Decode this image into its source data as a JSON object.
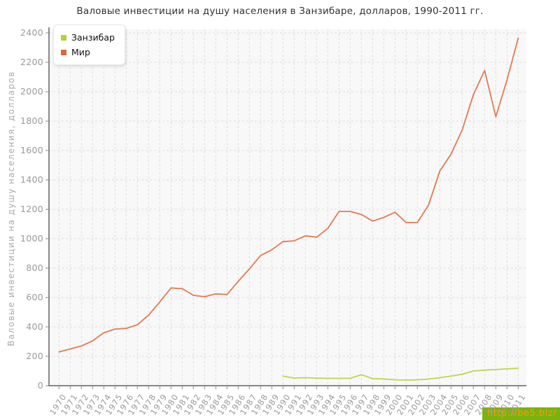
{
  "title": "Валовые инвестиции на душу населения в Занзибаре, долларов, 1990-2011 гг.",
  "y_axis_label": "Валовые инвестиции на душу населения, долларов",
  "watermark_text": "http://be5.biz/",
  "colors": {
    "zanzibar_line": "#bcd64b",
    "mir_line": "#e5794e",
    "zanzibar_swatch": "#b1d334",
    "mir_swatch": "#e06638",
    "grid": "#dcdcdc",
    "axis": "#888888",
    "tick_text": "#999999",
    "title_text": "#333333",
    "plot_bg": "#f8f8f8",
    "watermark_bg": "#79b30d",
    "watermark_fg": "#fd9a0e"
  },
  "chart_data": {
    "type": "line",
    "title": "Валовые инвестиции на душу населения в Занзибаре, долларов, 1990-2011 гг.",
    "ylabel": "Валовые инвестиции на душу населения, долларов",
    "xlabel": "",
    "grid": true,
    "legend_position": "top-left",
    "ylim": [
      0,
      2400
    ],
    "yticks": [
      0,
      200,
      400,
      600,
      800,
      1000,
      1200,
      1400,
      1600,
      1800,
      2000,
      2200,
      2400
    ],
    "x": [
      1970,
      1971,
      1972,
      1973,
      1974,
      1975,
      1976,
      1977,
      1978,
      1979,
      1980,
      1981,
      1982,
      1983,
      1984,
      1985,
      1986,
      1987,
      1988,
      1989,
      1990,
      1991,
      1992,
      1993,
      1994,
      1995,
      1996,
      1997,
      1998,
      1999,
      2000,
      2001,
      2002,
      2003,
      2004,
      2005,
      2006,
      2007,
      2008,
      2009,
      2010,
      2011
    ],
    "series": [
      {
        "id": "zanzibar",
        "name": "Занзибар",
        "color": "#bcd64b",
        "swatch_color": "#b1d334",
        "values": [
          null,
          null,
          null,
          null,
          null,
          null,
          null,
          null,
          null,
          null,
          null,
          null,
          null,
          null,
          null,
          null,
          null,
          null,
          null,
          null,
          65,
          52,
          55,
          52,
          50,
          50,
          50,
          75,
          48,
          46,
          40,
          38,
          40,
          45,
          55,
          65,
          78,
          100,
          106,
          110,
          115,
          118
        ]
      },
      {
        "id": "mir",
        "name": "Мир",
        "color": "#e5794e",
        "swatch_color": "#e06638",
        "values": [
          230,
          250,
          270,
          305,
          360,
          385,
          390,
          415,
          480,
          570,
          665,
          660,
          615,
          605,
          625,
          620,
          710,
          795,
          885,
          925,
          980,
          985,
          1020,
          1010,
          1070,
          1185,
          1185,
          1165,
          1120,
          1145,
          1180,
          1110,
          1110,
          1230,
          1460,
          1575,
          1740,
          1980,
          2145,
          1830,
          2080,
          2365
        ]
      }
    ]
  }
}
